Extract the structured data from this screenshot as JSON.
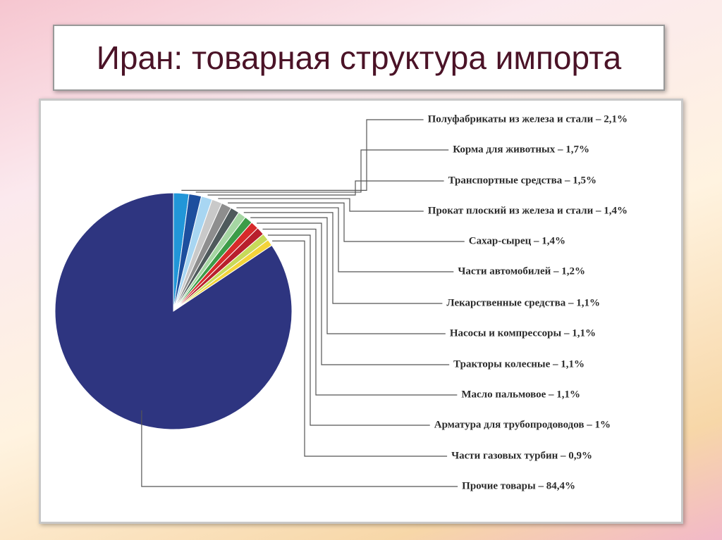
{
  "chart_data": {
    "type": "pie",
    "title": "Иран: товарная структура импорта",
    "categories": [
      "Полуфабрикаты из железа и стали – 2,1%",
      "Корма для животных – 1,7%",
      "Транспортные средства – 1,5%",
      "Прокат плоский из железа и стали – 1,4%",
      "Сахар-сырец – 1,4%",
      "Части автомобилей – 1,2%",
      "Лекарственные средства – 1,1%",
      "Насосы и компрессоры – 1,1%",
      "Тракторы колесные – 1,1%",
      "Масло пальмовое – 1,1%",
      "Арматура для трубопродоводов – 1%",
      "Части газовых турбин – 0,9%",
      "Прочие товары – 84,4%"
    ],
    "values": [
      2.1,
      1.7,
      1.5,
      1.4,
      1.4,
      1.2,
      1.1,
      1.1,
      1.1,
      1.1,
      1,
      0.9,
      84.4
    ],
    "colors": [
      "#2196d8",
      "#1d4f9e",
      "#a8d6f2",
      "#c9c9c9",
      "#8e8e8e",
      "#4f5a5c",
      "#a5d6a3",
      "#3c9c48",
      "#d62a2a",
      "#b81f2c",
      "#c7da5a",
      "#f3d43a",
      "#f2a7c7",
      "#2e3580"
    ]
  }
}
